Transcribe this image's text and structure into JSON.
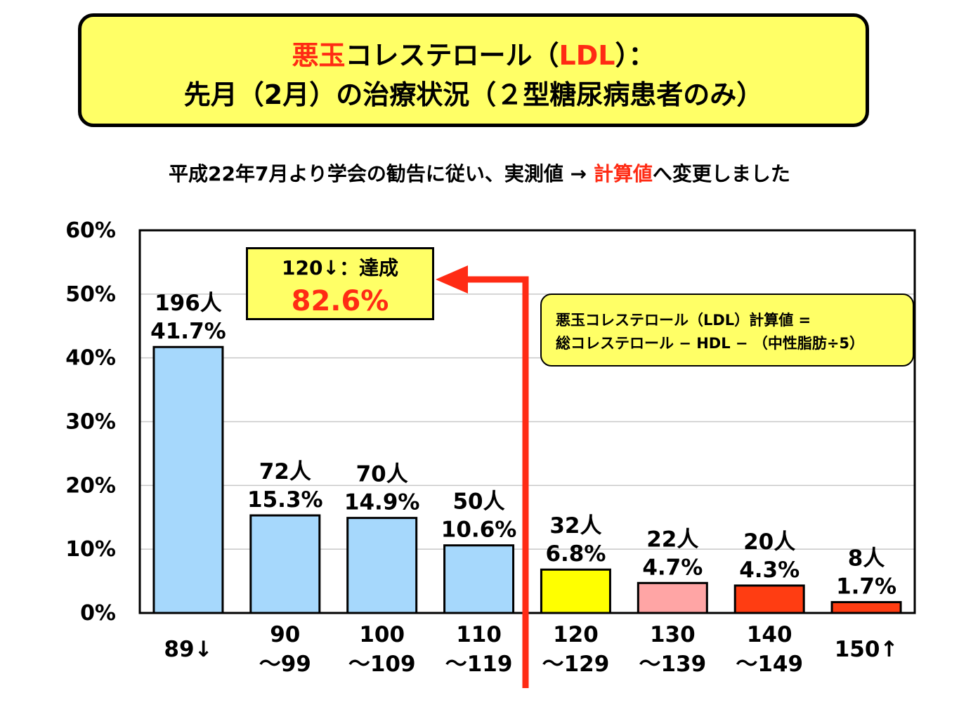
{
  "title": {
    "line1_red": "悪玉",
    "line1_rest_a": "コレステロール（",
    "line1_red2": "LDL",
    "line1_rest_b": "）：",
    "line2": "先月（2月）の治療状況（２型糖尿病患者のみ）"
  },
  "subtitle": {
    "prefix": "平成22年7月より学会の勧告に従い、実測値 → ",
    "highlight": "計算値",
    "suffix": "へ変更しました"
  },
  "achievement": {
    "label": "120↓：達成",
    "value": "82.6%"
  },
  "formula": {
    "line1": "悪玉コレステロール（LDL）計算値 =",
    "line2": "総コレステロール − HDL − （中性脂肪÷5）"
  },
  "colors": {
    "title_bg": "#ffff66",
    "accent_red": "#ff2b14",
    "arrow_red": "#ff2b14"
  },
  "chart_data": {
    "type": "bar",
    "ylim": [
      0,
      60
    ],
    "yticks": [
      "0%",
      "10%",
      "20%",
      "30%",
      "40%",
      "50%",
      "60%"
    ],
    "grid": true,
    "categories": [
      [
        "89↓"
      ],
      [
        "90",
        "～99"
      ],
      [
        "100",
        "～109"
      ],
      [
        "110",
        "～119"
      ],
      [
        "120",
        "～129"
      ],
      [
        "130",
        "～139"
      ],
      [
        "140",
        "～149"
      ],
      [
        "150↑"
      ]
    ],
    "counts": [
      "196人",
      "72人",
      "70人",
      "50人",
      "32人",
      "22人",
      "20人",
      "8人"
    ],
    "values": [
      41.7,
      15.3,
      14.9,
      10.6,
      6.8,
      4.7,
      4.3,
      1.7
    ],
    "value_labels": [
      "41.7%",
      "15.3%",
      "14.9%",
      "10.6%",
      "6.8%",
      "4.7%",
      "4.3%",
      "1.7%"
    ],
    "bar_colors": [
      "#a6d8fc",
      "#a6d8fc",
      "#a6d8fc",
      "#a6d8fc",
      "#ffff00",
      "#ffa5a5",
      "#ff3d12",
      "#ff3d12"
    ]
  }
}
